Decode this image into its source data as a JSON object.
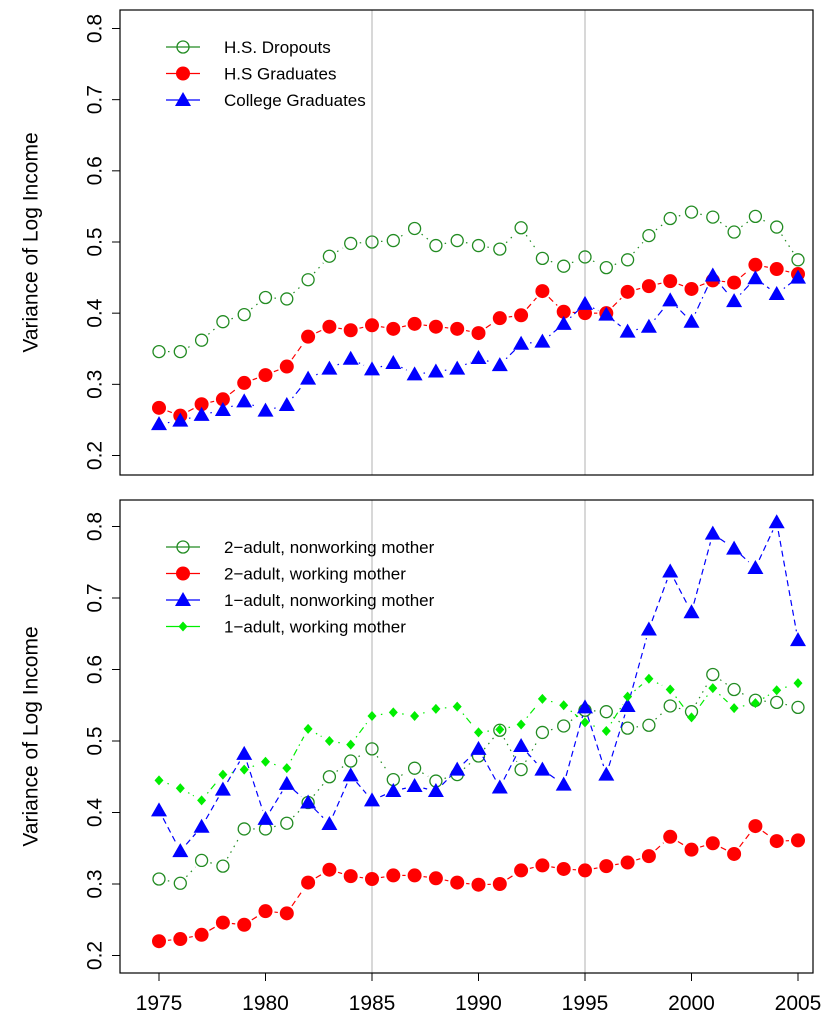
{
  "chart_data": [
    {
      "type": "line",
      "title": "",
      "xlabel": "",
      "ylabel": "Variance of Log Income",
      "ylim": [
        0.2,
        0.8
      ],
      "xlim": [
        1975,
        2005
      ],
      "grid_x": [
        1985,
        1995
      ],
      "legend_position": "top-left",
      "yticks": [
        "0.2",
        "0.3",
        "0.4",
        "0.5",
        "0.6",
        "0.7",
        "0.8"
      ],
      "x": [
        1975,
        1976,
        1977,
        1978,
        1979,
        1980,
        1981,
        1982,
        1983,
        1984,
        1985,
        1986,
        1987,
        1988,
        1989,
        1990,
        1991,
        1992,
        1993,
        1994,
        1995,
        1996,
        1997,
        1998,
        1999,
        2000,
        2001,
        2002,
        2003,
        2004,
        2005
      ],
      "series": [
        {
          "name": "H.S. Dropouts",
          "color": "#228b22",
          "marker": "open-circle",
          "line": "dotted",
          "values": [
            0.346,
            0.346,
            0.362,
            0.388,
            0.398,
            0.422,
            0.42,
            0.447,
            0.48,
            0.498,
            0.5,
            0.502,
            0.519,
            0.495,
            0.502,
            0.495,
            0.49,
            0.52,
            0.477,
            0.466,
            0.479,
            0.464,
            0.475,
            0.509,
            0.533,
            0.542,
            0.535,
            0.514,
            0.536,
            0.521,
            0.475
          ]
        },
        {
          "name": "H.S Graduates",
          "color": "#ff0000",
          "marker": "filled-circle",
          "line": "dashed",
          "values": [
            0.267,
            0.256,
            0.272,
            0.279,
            0.302,
            0.313,
            0.325,
            0.367,
            0.381,
            0.376,
            0.383,
            0.378,
            0.385,
            0.381,
            0.378,
            0.372,
            0.393,
            0.397,
            0.431,
            0.402,
            0.4,
            0.4,
            0.43,
            0.438,
            0.445,
            0.434,
            0.446,
            0.443,
            0.468,
            0.462,
            0.455
          ]
        },
        {
          "name": "College Graduates",
          "color": "#0000ff",
          "marker": "filled-triangle",
          "line": "dotdash",
          "values": [
            0.244,
            0.249,
            0.257,
            0.264,
            0.276,
            0.263,
            0.271,
            0.308,
            0.322,
            0.336,
            0.321,
            0.33,
            0.314,
            0.318,
            0.322,
            0.337,
            0.327,
            0.357,
            0.36,
            0.385,
            0.413,
            0.398,
            0.374,
            0.381,
            0.418,
            0.388,
            0.453,
            0.417,
            0.449,
            0.427,
            0.45
          ]
        }
      ]
    },
    {
      "type": "line",
      "title": "",
      "xlabel": "",
      "ylabel": "Variance of Log Income",
      "ylim": [
        0.2,
        0.8
      ],
      "xlim": [
        1975,
        2005
      ],
      "grid_x": [
        1985,
        1995
      ],
      "legend_position": "top-left",
      "yticks": [
        "0.2",
        "0.3",
        "0.4",
        "0.5",
        "0.6",
        "0.7",
        "0.8"
      ],
      "xticks": [
        "1975",
        "1980",
        "1985",
        "1990",
        "1995",
        "2000",
        "2005"
      ],
      "x": [
        1975,
        1976,
        1977,
        1978,
        1979,
        1980,
        1981,
        1982,
        1983,
        1984,
        1985,
        1986,
        1987,
        1988,
        1989,
        1990,
        1991,
        1992,
        1993,
        1994,
        1995,
        1996,
        1997,
        1998,
        1999,
        2000,
        2001,
        2002,
        2003,
        2004,
        2005
      ],
      "series": [
        {
          "name": "2−adult, nonworking mother",
          "color": "#228b22",
          "marker": "open-circle",
          "line": "dotted",
          "values": [
            0.307,
            0.301,
            0.333,
            0.325,
            0.377,
            0.377,
            0.385,
            0.414,
            0.45,
            0.472,
            0.489,
            0.446,
            0.462,
            0.444,
            0.453,
            0.479,
            0.515,
            0.46,
            0.512,
            0.521,
            0.543,
            0.541,
            0.518,
            0.522,
            0.549,
            0.541,
            0.593,
            0.572,
            0.557,
            0.554,
            0.547
          ]
        },
        {
          "name": "2−adult, working mother",
          "color": "#ff0000",
          "marker": "filled-circle",
          "line": "dashed",
          "values": [
            0.22,
            0.223,
            0.229,
            0.246,
            0.243,
            0.262,
            0.259,
            0.302,
            0.32,
            0.311,
            0.307,
            0.312,
            0.312,
            0.308,
            0.302,
            0.299,
            0.3,
            0.319,
            0.326,
            0.321,
            0.319,
            0.325,
            0.33,
            0.339,
            0.366,
            0.348,
            0.357,
            0.342,
            0.381,
            0.36,
            0.361
          ]
        },
        {
          "name": "1−adult, nonworking mother",
          "color": "#0000ff",
          "marker": "filled-triangle",
          "line": "dashed",
          "values": [
            0.403,
            0.346,
            0.38,
            0.432,
            0.482,
            0.391,
            0.44,
            0.414,
            0.384,
            0.452,
            0.417,
            0.43,
            0.437,
            0.43,
            0.46,
            0.489,
            0.435,
            0.493,
            0.46,
            0.439,
            0.547,
            0.453,
            0.549,
            0.656,
            0.737,
            0.68,
            0.79,
            0.769,
            0.742,
            0.806,
            0.641
          ]
        },
        {
          "name": "1−adult, working mother",
          "color": "#00ee00",
          "marker": "filled-diamond",
          "line": "dotdash",
          "values": [
            0.445,
            0.434,
            0.417,
            0.453,
            0.46,
            0.471,
            0.462,
            0.517,
            0.5,
            0.495,
            0.535,
            0.54,
            0.535,
            0.545,
            0.548,
            0.512,
            0.516,
            0.523,
            0.559,
            0.55,
            0.526,
            0.514,
            0.562,
            0.587,
            0.572,
            0.533,
            0.574,
            0.546,
            0.553,
            0.571,
            0.581
          ]
        }
      ]
    }
  ]
}
